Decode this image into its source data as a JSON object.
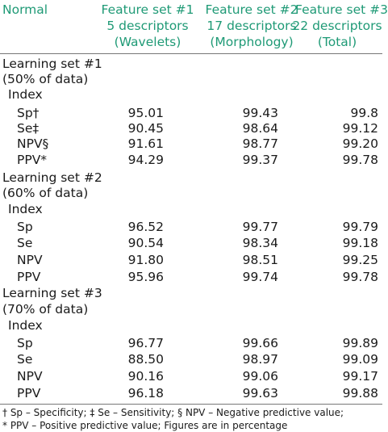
{
  "header": {
    "first": "Normal",
    "columns": [
      {
        "l1": "Feature set #1",
        "l2": "5 descriptors",
        "l3": "(Wavelets)"
      },
      {
        "l1": "Feature set #2",
        "l2": "17 descriptors",
        "l3": "(Morphology)"
      },
      {
        "l1": "Feature set #3",
        "l2": "22 descriptors",
        "l3": "(Total)"
      }
    ]
  },
  "sections": [
    {
      "title": "Learning set #1",
      "subtitle": "(50% of data)",
      "index": "Index",
      "rows": [
        {
          "label": "Sp†",
          "values": [
            "95.01",
            "99.43",
            "99.8"
          ]
        },
        {
          "label": "Se‡",
          "values": [
            "90.45",
            "98.64",
            "99.12"
          ]
        },
        {
          "label": "NPV§",
          "values": [
            "91.61",
            "98.77",
            "99.20"
          ]
        },
        {
          "label": "PPV*",
          "values": [
            "94.29",
            "99.37",
            "99.78"
          ]
        }
      ]
    },
    {
      "title": "Learning set #2",
      "subtitle": "(60% of data)",
      "index": "Index",
      "rows": [
        {
          "label": "Sp",
          "values": [
            "96.52",
            "99.77",
            "99.79"
          ]
        },
        {
          "label": "Se",
          "values": [
            "90.54",
            "98.34",
            "99.18"
          ]
        },
        {
          "label": "NPV",
          "values": [
            "91.80",
            "98.51",
            "99.25"
          ]
        },
        {
          "label": "PPV",
          "values": [
            "95.96",
            "99.74",
            "99.78"
          ]
        }
      ]
    },
    {
      "title": "Learning set #3",
      "subtitle": "(70% of data)",
      "index": "Index",
      "rows": [
        {
          "label": "Sp",
          "values": [
            "96.77",
            "99.66",
            "99.89"
          ]
        },
        {
          "label": "Se",
          "values": [
            "88.50",
            "98.97",
            "99.09"
          ]
        },
        {
          "label": "NPV",
          "values": [
            "90.16",
            "99.06",
            "99.17"
          ]
        },
        {
          "label": "PPV",
          "values": [
            "96.18",
            "99.63",
            "99.88"
          ]
        }
      ]
    }
  ],
  "footnotes": [
    "† Sp – Specificity; ‡ Se – Sensitivity; § NPV – Negative predictive value;",
    "* PPV – Positive predictive value; Figures are in percentage"
  ],
  "colors": {
    "header_text": "#1f9a76",
    "body_text": "#1a1a1a",
    "rule": "#777777"
  }
}
